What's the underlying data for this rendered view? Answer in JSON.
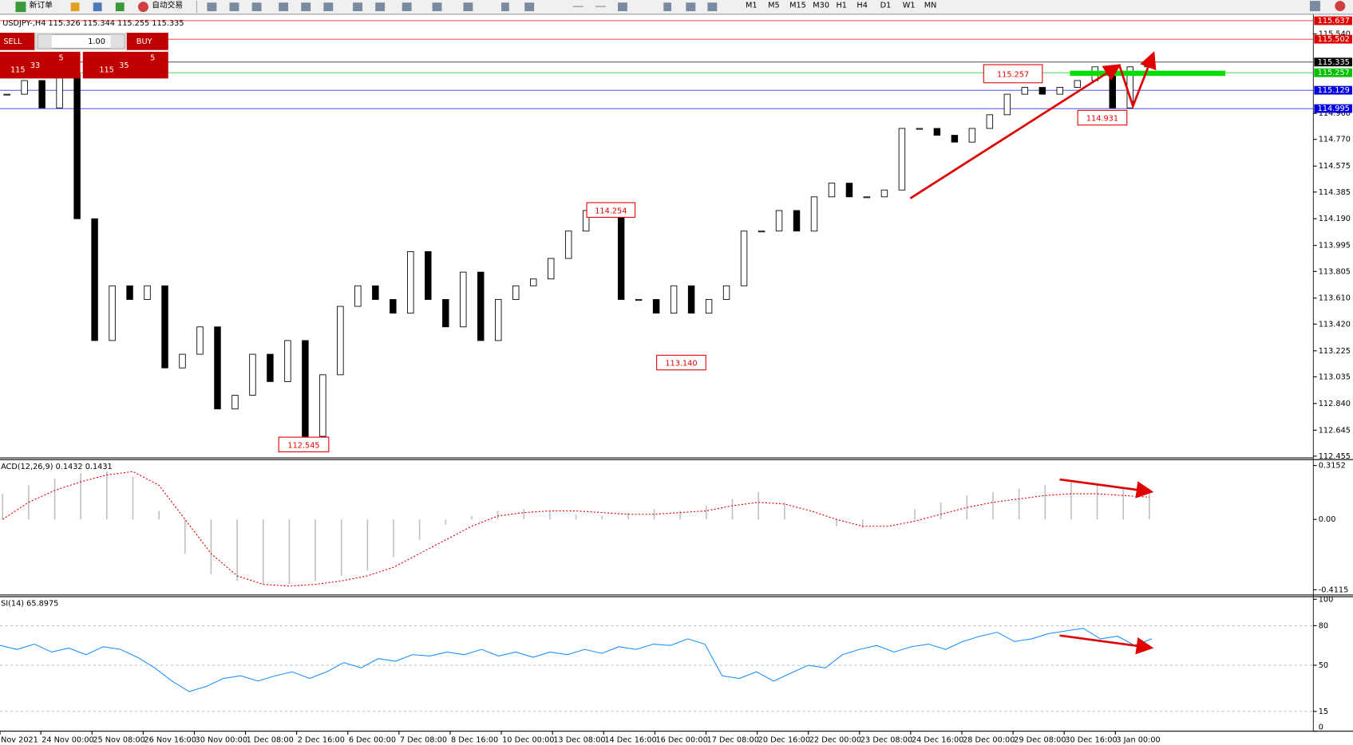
{
  "toolbar": {
    "new_order": "新订单",
    "auto_trade": "自动交易",
    "timeframes": [
      "M1",
      "M5",
      "M15",
      "M30",
      "H1",
      "H4",
      "D1",
      "W1",
      "MN"
    ]
  },
  "trade_panel": {
    "sell": "SELL",
    "lot": "1.00",
    "buy": "BUY",
    "sell_price": {
      "big": "115",
      "mid": "33",
      "sup": "5"
    },
    "buy_price": {
      "big": "115",
      "mid": "35",
      "sup": "5"
    }
  },
  "chart_data": {
    "type": "candlestick",
    "title": "USDJPY-,H4  115.326 115.344 115.255 115.335",
    "closes": [
      115.1,
      115.2,
      115.0,
      115.25,
      114.19,
      113.3,
      113.7,
      113.6,
      113.7,
      113.1,
      113.2,
      113.4,
      112.8,
      112.9,
      113.2,
      113.0,
      113.3,
      112.6,
      113.05,
      113.55,
      113.7,
      113.6,
      113.5,
      113.95,
      113.6,
      113.4,
      113.8,
      113.3,
      113.6,
      113.7,
      113.75,
      113.9,
      114.1,
      114.25,
      114.2,
      113.6,
      113.6,
      113.5,
      113.7,
      113.5,
      113.6,
      113.7,
      114.1,
      114.1,
      114.25,
      114.1,
      114.35,
      114.45,
      114.35,
      114.35,
      114.4,
      114.85,
      114.85,
      114.8,
      114.75,
      114.85,
      114.95,
      115.1,
      115.15,
      115.1,
      115.15,
      115.2,
      115.3,
      115.0,
      115.3,
      115.34
    ],
    "ylim": [
      112.449,
      115.675
    ],
    "yticks": [
      112.455,
      112.645,
      {
        "value": 112.84,
        "label": "112.840"
      },
      113.035,
      113.225,
      {
        "value": 113.42,
        "label": "113.420"
      },
      {
        "value": 113.61,
        "label": "113.610"
      },
      113.805,
      113.995,
      {
        "value": 114.19,
        "label": "114.190"
      },
      114.385,
      114.575,
      {
        "value": 114.77,
        "label": "114.770"
      },
      {
        "value": 114.96,
        "label": "114.960"
      },
      {
        "value": 115.54,
        "label": "115.540"
      }
    ],
    "levels": [
      {
        "value": 115.637,
        "label": "115.637",
        "color": "#e00000"
      },
      {
        "value": 115.502,
        "label": "115.502",
        "color": "#e00000"
      },
      {
        "value": 115.335,
        "label": "115.335",
        "color": "#000000"
      },
      {
        "value": 115.257,
        "label": "115.257",
        "color": "#00c000"
      },
      {
        "value": 115.129,
        "label": "115.129",
        "color": "#0000e0"
      },
      {
        "value": 114.995,
        "label": "114.995",
        "color": "#0000e0"
      }
    ],
    "annotations": [
      "115.257",
      "114.931",
      "114.254",
      "113.140",
      "112.545"
    ],
    "macd": {
      "label": "ACD(12,26,9) 0.1432 0.1431",
      "color": "#c0c0c0",
      "signal_color": "#e00000",
      "histogram": [
        0.15,
        0.2,
        0.24,
        0.27,
        0.28,
        0.25,
        0.05,
        -0.2,
        -0.32,
        -0.36,
        -0.38,
        -0.38,
        -0.36,
        -0.33,
        -0.3,
        -0.22,
        -0.12,
        -0.03,
        0.02,
        0.05,
        0.06,
        0.05,
        0.03,
        0.02,
        0.04,
        0.06,
        0.05,
        0.08,
        0.12,
        0.16,
        0.1,
        0.0,
        -0.04,
        -0.05,
        0.0,
        0.06,
        0.1,
        0.14,
        0.16,
        0.18,
        0.2,
        0.22,
        0.2,
        0.19,
        0.18
      ],
      "signal": [
        0.0,
        0.1,
        0.17,
        0.22,
        0.26,
        0.28,
        0.2,
        0.0,
        -0.2,
        -0.33,
        -0.38,
        -0.39,
        -0.38,
        -0.36,
        -0.33,
        -0.28,
        -0.2,
        -0.12,
        -0.04,
        0.02,
        0.04,
        0.05,
        0.05,
        0.04,
        0.03,
        0.03,
        0.04,
        0.05,
        0.08,
        0.1,
        0.09,
        0.05,
        0.0,
        -0.04,
        -0.04,
        -0.01,
        0.03,
        0.07,
        0.1,
        0.12,
        0.14,
        0.15,
        0.15,
        0.14,
        0.13
      ],
      "ylim": [
        -0.442,
        0.35
      ],
      "yticks": [
        0.3152,
        {
          "value": 0,
          "label": "0.00"
        },
        -0.4115
      ]
    },
    "rsi": {
      "label": "SI(14) 65.8975",
      "color": "#1e90ff",
      "values": [
        65,
        62,
        66,
        60,
        63,
        58,
        64,
        62,
        56,
        48,
        38,
        30,
        34,
        40,
        42,
        38,
        42,
        45,
        40,
        45,
        52,
        48,
        55,
        53,
        58,
        57,
        60,
        58,
        62,
        57,
        60,
        56,
        60,
        58,
        62,
        59,
        64,
        62,
        66,
        65,
        70,
        66,
        42,
        40,
        45,
        38,
        44,
        50,
        48,
        58,
        62,
        65,
        60,
        64,
        66,
        62,
        68,
        72,
        75,
        68,
        70,
        74,
        76,
        78,
        70,
        72,
        65,
        70
      ],
      "ylim": [
        0,
        100
      ],
      "yticks": [
        100,
        80,
        50,
        15,
        0
      ]
    },
    "date_labels": [
      "Nov 2021",
      "24 Nov 00:00",
      "25 Nov 08:00",
      "26 Nov 16:00",
      "30 Nov 00:00",
      "1 Dec 08:00",
      "2 Dec 16:00",
      "6 Dec 00:00",
      "7 Dec 08:00",
      "8 Dec 16:00",
      "10 Dec 00:00",
      "13 Dec 08:00",
      "14 Dec 16:00",
      "16 Dec 00:00",
      "17 Dec 08:00",
      "20 Dec 16:00",
      "22 Dec 00:00",
      "23 Dec 08:00",
      "24 Dec 16:00",
      "28 Dec 00:00",
      "29 Dec 08:00",
      "30 Dec 16:00",
      "3 Jan 00:00"
    ]
  }
}
